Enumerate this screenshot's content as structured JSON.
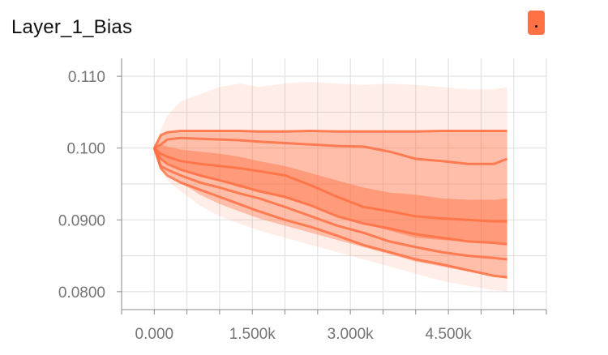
{
  "chart_data": {
    "type": "area",
    "title": "Layer_1_Bias",
    "xlabel": "",
    "ylabel": "",
    "xlim": [
      -500,
      6000
    ],
    "ylim": [
      0.0775,
      0.1125
    ],
    "xticks": [
      0,
      1500,
      3000,
      4500
    ],
    "xtick_labels": [
      "0.000",
      "1.500k",
      "3.000k",
      "4.500k"
    ],
    "yticks": [
      0.08,
      0.09,
      0.1,
      0.11
    ],
    "ytick_labels": [
      "0.0800",
      "0.0900",
      "0.100",
      "0.110"
    ],
    "grid": true,
    "colors": {
      "series": "#ff7043",
      "grid": "#dddddd",
      "axis": "#8a8a8a"
    },
    "x": [
      0,
      100,
      200,
      400,
      700,
      1000,
      1300,
      1600,
      2000,
      2400,
      2800,
      3200,
      3600,
      4000,
      4400,
      4800,
      5200,
      5400
    ],
    "bands": [
      {
        "upper": [
          0.1,
          0.1025,
          0.1045,
          0.1065,
          0.1075,
          0.1085,
          0.109,
          0.1085,
          0.109,
          0.1092,
          0.109,
          0.1088,
          0.109,
          0.1088,
          0.1085,
          0.1082,
          0.1082,
          0.1085
        ],
        "lower": [
          0.1,
          0.097,
          0.0955,
          0.094,
          0.092,
          0.0905,
          0.0895,
          0.0885,
          0.0875,
          0.0865,
          0.0855,
          0.0845,
          0.0835,
          0.0825,
          0.0815,
          0.0808,
          0.0802,
          0.08
        ]
      },
      {
        "upper": [
          0.1,
          0.1018,
          0.1022,
          0.1024,
          0.1025,
          0.1025,
          0.1025,
          0.1025,
          0.1025,
          0.1025,
          0.1025,
          0.1025,
          0.1025,
          0.1025,
          0.1025,
          0.1025,
          0.1025,
          0.1025
        ],
        "lower": [
          0.1,
          0.0975,
          0.0965,
          0.0952,
          0.0935,
          0.0922,
          0.0912,
          0.0902,
          0.0892,
          0.0882,
          0.0872,
          0.0862,
          0.0852,
          0.0842,
          0.0835,
          0.0828,
          0.0822,
          0.0818
        ]
      },
      {
        "upper": [
          0.1,
          0.1005,
          0.1002,
          0.0998,
          0.0995,
          0.0992,
          0.0988,
          0.0982,
          0.0975,
          0.0965,
          0.0955,
          0.0945,
          0.0938,
          0.0935,
          0.093,
          0.0928,
          0.0928,
          0.093
        ],
        "lower": [
          0.1,
          0.0985,
          0.098,
          0.097,
          0.096,
          0.0955,
          0.0945,
          0.094,
          0.093,
          0.092,
          0.0905,
          0.0895,
          0.0885,
          0.0875,
          0.0872,
          0.087,
          0.0868,
          0.0868
        ]
      }
    ],
    "series": [
      {
        "values": [
          0.1,
          0.1018,
          0.1022,
          0.1024,
          0.1024,
          0.1024,
          0.1024,
          0.1023,
          0.1023,
          0.1024,
          0.1023,
          0.1023,
          0.1023,
          0.1023,
          0.1024,
          0.1024,
          0.1024,
          0.1024
        ]
      },
      {
        "values": [
          0.1,
          0.1005,
          0.1012,
          0.1014,
          0.1013,
          0.1012,
          0.1011,
          0.1009,
          0.1007,
          0.1005,
          0.1003,
          0.1002,
          0.0995,
          0.0985,
          0.0982,
          0.0978,
          0.0978,
          0.0985
        ]
      },
      {
        "values": [
          0.1,
          0.0992,
          0.0988,
          0.0982,
          0.0978,
          0.0975,
          0.0972,
          0.0968,
          0.0962,
          0.0948,
          0.0932,
          0.0918,
          0.0912,
          0.0905,
          0.0902,
          0.09,
          0.0898,
          0.0898
        ]
      },
      {
        "values": [
          0.1,
          0.0985,
          0.0978,
          0.097,
          0.0962,
          0.0955,
          0.0948,
          0.094,
          0.0932,
          0.092,
          0.0905,
          0.0895,
          0.0888,
          0.088,
          0.0875,
          0.087,
          0.0868,
          0.0866
        ]
      },
      {
        "values": [
          0.1,
          0.0975,
          0.097,
          0.0962,
          0.0952,
          0.0945,
          0.0937,
          0.093,
          0.0918,
          0.0905,
          0.0892,
          0.0882,
          0.087,
          0.0862,
          0.0855,
          0.085,
          0.0847,
          0.0845
        ]
      },
      {
        "values": [
          0.1,
          0.0972,
          0.0962,
          0.0952,
          0.0942,
          0.0932,
          0.0922,
          0.0912,
          0.09,
          0.089,
          0.0878,
          0.0865,
          0.0855,
          0.0845,
          0.0838,
          0.083,
          0.0822,
          0.082
        ]
      }
    ]
  }
}
